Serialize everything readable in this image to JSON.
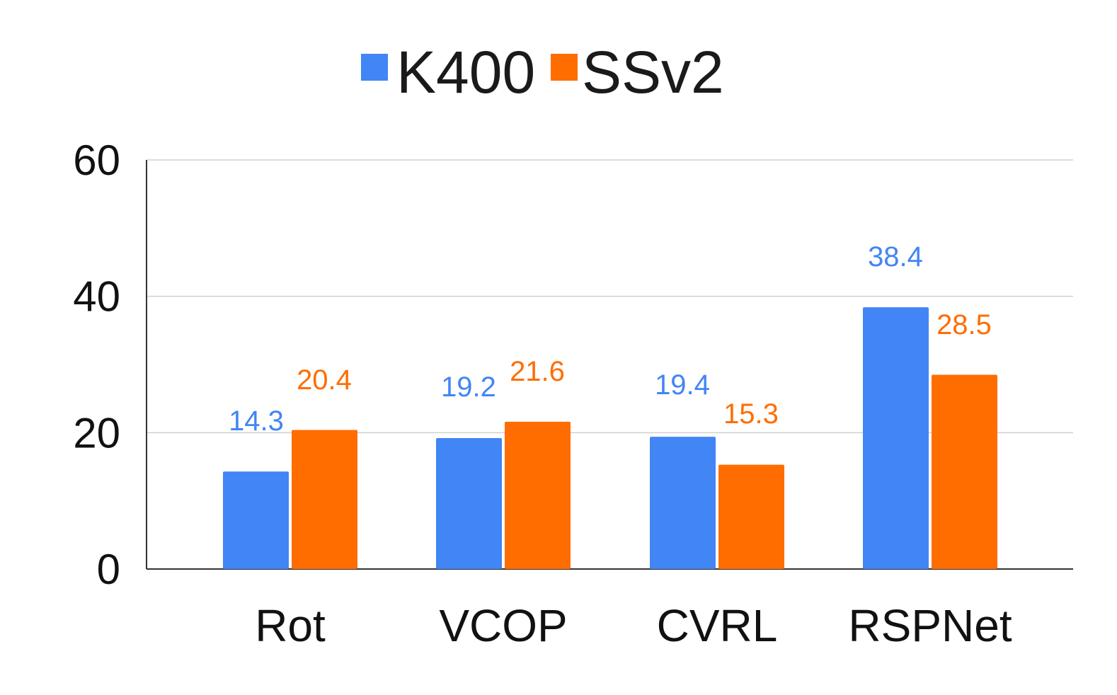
{
  "chart_data": {
    "type": "bar",
    "title": "",
    "xlabel": "",
    "ylabel": "",
    "categories": [
      "Rot",
      "VCOP",
      "CVRL",
      "RSPNet"
    ],
    "series": [
      {
        "name": "K400",
        "color": "#4285f4",
        "values": [
          14.3,
          19.2,
          19.4,
          38.4
        ]
      },
      {
        "name": "SSv2",
        "color": "#ff6d01",
        "values": [
          20.4,
          21.6,
          15.3,
          28.5
        ]
      }
    ],
    "ylim": [
      0,
      60
    ],
    "yticks": [
      0,
      20,
      40,
      60
    ],
    "grid": true,
    "legend_position": "top-center",
    "data_labels": true
  }
}
